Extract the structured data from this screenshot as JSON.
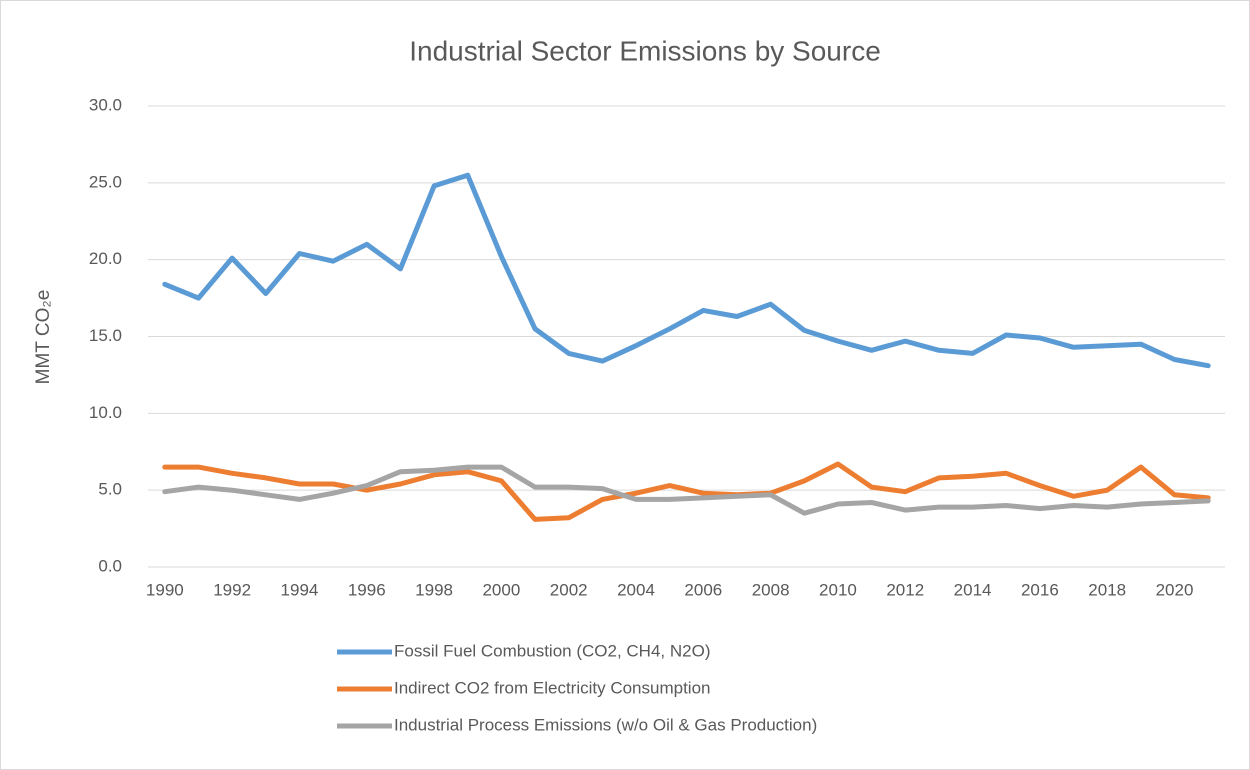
{
  "chart_data": {
    "type": "line",
    "title": "Industrial Sector Emissions by Source",
    "y_label": "MMT CO₂e",
    "x": [
      1990,
      1991,
      1992,
      1993,
      1994,
      1995,
      1996,
      1997,
      1998,
      1999,
      2000,
      2001,
      2002,
      2003,
      2004,
      2005,
      2006,
      2007,
      2008,
      2009,
      2010,
      2011,
      2012,
      2013,
      2014,
      2015,
      2016,
      2017,
      2018,
      2019,
      2020,
      2021
    ],
    "xticks": [
      1990,
      1992,
      1994,
      1996,
      1998,
      2000,
      2002,
      2004,
      2006,
      2008,
      2010,
      2012,
      2014,
      2016,
      2018,
      2020
    ],
    "ylim": [
      0,
      30
    ],
    "yticks": [
      {
        "value": 0,
        "label": "0.0"
      },
      {
        "value": 5,
        "label": "5.0"
      },
      {
        "value": 10,
        "label": "10.0"
      },
      {
        "value": 15,
        "label": "15.0"
      },
      {
        "value": 20,
        "label": "20.0"
      },
      {
        "value": 25,
        "label": "25.0"
      },
      {
        "value": 30,
        "label": "30.0"
      }
    ],
    "grid": true,
    "legend": "bottom",
    "series": [
      {
        "name": "Fossil Fuel Combustion (CO2, CH4, N2O)",
        "color": "#5b9bd5",
        "values": [
          18.4,
          17.5,
          20.1,
          17.8,
          20.4,
          19.9,
          21.0,
          19.4,
          24.8,
          25.5,
          20.2,
          15.5,
          13.9,
          13.4,
          14.4,
          15.5,
          16.7,
          16.3,
          17.1,
          15.4,
          14.7,
          14.1,
          14.7,
          14.1,
          13.9,
          15.1,
          14.9,
          14.3,
          14.4,
          14.5,
          13.5,
          13.1
        ]
      },
      {
        "name": "Indirect CO2 from Electricity Consumption",
        "color": "#ed7d31",
        "values": [
          6.5,
          6.5,
          6.1,
          5.8,
          5.4,
          5.4,
          5.0,
          5.4,
          6.0,
          6.2,
          5.6,
          3.1,
          3.2,
          4.4,
          4.8,
          5.3,
          4.8,
          4.7,
          4.8,
          5.6,
          6.7,
          5.2,
          4.9,
          5.8,
          5.9,
          6.1,
          5.3,
          4.6,
          5.0,
          6.5,
          4.7,
          4.5
        ]
      },
      {
        "name": "Industrial Process Emissions (w/o Oil & Gas Production)",
        "color": "#a5a5a5",
        "values": [
          4.9,
          5.2,
          5.0,
          4.7,
          4.4,
          4.8,
          5.3,
          6.2,
          6.3,
          6.5,
          6.5,
          5.2,
          5.2,
          5.1,
          4.4,
          4.4,
          4.5,
          4.6,
          4.7,
          3.5,
          4.1,
          4.2,
          3.7,
          3.9,
          3.9,
          4.0,
          3.8,
          4.0,
          3.9,
          4.1,
          4.2,
          4.3
        ]
      }
    ]
  }
}
